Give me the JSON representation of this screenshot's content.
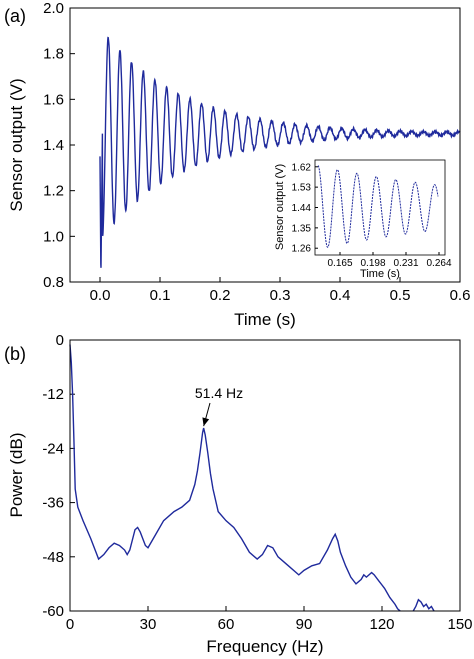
{
  "colors": {
    "series": "#1f2a9c",
    "axis": "#000000",
    "background": "#ffffff"
  },
  "panels": {
    "a": {
      "label": "(a)"
    },
    "b": {
      "label": "(b)"
    }
  },
  "chart_data": [
    {
      "id": "a",
      "type": "line",
      "xlabel": "Time (s)",
      "ylabel": "Sensor output (V)",
      "xlim": [
        -0.05,
        0.6
      ],
      "ylim": [
        0.8,
        2.0
      ],
      "xticks": [
        "0.0",
        "0.1",
        "0.2",
        "0.3",
        "0.4",
        "0.5",
        "0.6"
      ],
      "yticks": [
        "0.8",
        "1.0",
        "1.2",
        "1.4",
        "1.6",
        "1.8",
        "2.0"
      ],
      "series": [
        {
          "model": "damped_sine",
          "t_start": 0.0,
          "t_end": 0.6,
          "offset": 1.45,
          "initial_amplitude": 0.5,
          "frequency_hz": 51.4,
          "decay_per_s": 7.5,
          "start_value": 1.35,
          "first_minimum": 0.82,
          "first_peak": 1.87
        }
      ],
      "inset": {
        "xlabel": "Time (s)",
        "ylabel": "Sensor output (V)",
        "xlim": [
          0.14,
          0.27
        ],
        "ylim": [
          1.23,
          1.65
        ],
        "xticks": [
          "0.165",
          "0.198",
          "0.231",
          "0.264"
        ],
        "yticks": [
          "1.26",
          "1.35",
          "1.44",
          "1.53",
          "1.62"
        ]
      }
    },
    {
      "id": "b",
      "type": "line",
      "xlabel": "Frequency (Hz)",
      "ylabel": "Power (dB)",
      "xlim": [
        0,
        150
      ],
      "ylim": [
        -60,
        0
      ],
      "xticks": [
        "0",
        "30",
        "60",
        "90",
        "120",
        "150"
      ],
      "yticks": [
        "0",
        "-12",
        "-24",
        "-36",
        "-48",
        "-60"
      ],
      "annotation": {
        "text": "51.4 Hz",
        "x": 51.4,
        "y": -19.5
      },
      "series": [
        {
          "x": [
            0,
            0.5,
            1,
            1.5,
            2,
            3,
            5,
            8,
            10,
            11,
            13,
            15,
            17,
            19,
            21,
            22,
            23,
            25,
            26,
            27,
            28,
            29,
            30,
            33,
            36,
            40,
            43,
            46,
            48,
            49,
            50,
            51,
            51.4,
            52,
            53,
            54,
            55,
            57,
            60,
            63,
            66,
            69,
            72,
            74,
            76,
            78,
            80,
            84,
            88,
            90,
            93,
            96,
            99,
            101,
            102,
            103,
            104,
            106,
            108,
            110,
            112,
            113,
            114,
            116,
            117,
            119,
            121,
            123,
            125,
            126,
            127
          ],
          "y": [
            -1,
            -5,
            -12,
            -22,
            -33,
            -37,
            -40,
            -44,
            -47,
            -48.5,
            -47.5,
            -46,
            -45,
            -45.5,
            -46.5,
            -47.5,
            -46.5,
            -42,
            -41.5,
            -42.5,
            -44,
            -45.5,
            -46,
            -43,
            -40,
            -38,
            -37,
            -35.5,
            -32,
            -29,
            -25,
            -20.5,
            -19.5,
            -21,
            -25,
            -29.5,
            -33,
            -38,
            -40,
            -41.5,
            -44,
            -47,
            -48.5,
            -47.5,
            -45.5,
            -46,
            -48,
            -50,
            -52,
            -51,
            -50,
            -49.5,
            -46.5,
            -44,
            -43,
            -44.5,
            -47,
            -50,
            -52.5,
            -54,
            -53,
            -52,
            -52.5,
            -51.5,
            -52,
            -53.5,
            -55,
            -57,
            -58.5,
            -59.5,
            -60
          ]
        },
        {
          "x": [
            132,
            133,
            134,
            135,
            136,
            137,
            138,
            139,
            140
          ],
          "y": [
            -60,
            -59,
            -57.5,
            -58,
            -59,
            -58.5,
            -59.5,
            -59,
            -60
          ]
        }
      ]
    }
  ]
}
